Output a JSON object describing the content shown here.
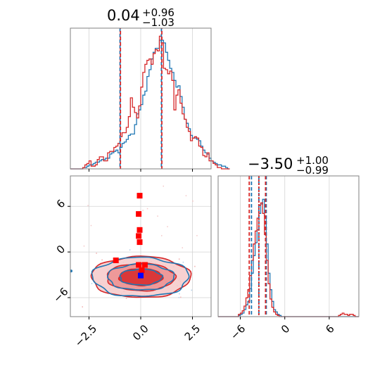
{
  "chart_data": {
    "type": "corner",
    "colors": {
      "series_a": "#1f77b4",
      "series_b": "#d62728",
      "fill_b": "#e34a4a",
      "marker_square": "#ff0000",
      "marker_center": "#0000ff",
      "grid": "#d3d3d3",
      "frame": "#808080"
    },
    "grid": true,
    "params": [
      {
        "median": "0.04",
        "upper": "+0.96",
        "lower": "−1.03",
        "range": [
          -3.4,
          3.4
        ],
        "ticks": [
          {
            "v": -2.5,
            "label": "−2.5"
          },
          {
            "v": 0.0,
            "label": "0.0"
          },
          {
            "v": 2.5,
            "label": "2.5"
          }
        ],
        "quantiles": {
          "series_a": [
            -1.0,
            0.04,
            1.0
          ],
          "series_b": [
            -1.0,
            0.04,
            1.0
          ]
        }
      },
      {
        "median": "−3.50",
        "upper": "+1.00",
        "lower": "−0.99",
        "range": [
          -9,
          10
        ],
        "ticks": [
          {
            "v": -6,
            "label": "−6"
          },
          {
            "v": 0,
            "label": "0"
          },
          {
            "v": 6,
            "label": "6"
          }
        ],
        "quantiles": {
          "series_a": [
            -4.5,
            -3.5,
            -2.5
          ],
          "series_b": [
            -4.8,
            -3.5,
            -2.6
          ]
        }
      }
    ],
    "joint": {
      "x_range": [
        -3.4,
        3.4
      ],
      "y_range": [
        -8.5,
        10
      ],
      "y_ticks": [
        {
          "v": 6,
          "label": "6"
        },
        {
          "v": 0,
          "label": "0"
        },
        {
          "v": -6,
          "label": "−6"
        }
      ],
      "contour_center": [
        0.0,
        -3.3
      ],
      "contour_levels_sigma": [
        [
          1.05,
          1.1
        ],
        [
          1.65,
          1.8
        ],
        [
          2.4,
          2.7
        ]
      ],
      "red_squares": [
        [
          -0.05,
          7.4
        ],
        [
          -0.1,
          5.0
        ],
        [
          -0.05,
          2.9
        ],
        [
          -0.1,
          2.1
        ],
        [
          -0.05,
          1.3
        ],
        [
          -1.2,
          -1.1
        ],
        [
          0.2,
          -1.7
        ],
        [
          -0.1,
          -1.7
        ],
        [
          0.05,
          -2.4
        ]
      ],
      "blue_square": [
        0.0,
        -3.1
      ]
    },
    "hist_1": {
      "x_start": -3.4,
      "bin_width": 0.1,
      "series_a": [
        0,
        0,
        0,
        0,
        0,
        0,
        1,
        1,
        2,
        3,
        3,
        4,
        5,
        5,
        6,
        7,
        7,
        8,
        8,
        11,
        12,
        13,
        14,
        12,
        16,
        19,
        20,
        22,
        25,
        26,
        26,
        33,
        41,
        44,
        48,
        55,
        58,
        69,
        74,
        82,
        87,
        90,
        90,
        96,
        96,
        94,
        87,
        81,
        75,
        72,
        66,
        61,
        62,
        54,
        46,
        37,
        34,
        30,
        25,
        23,
        23,
        22,
        21,
        17,
        14,
        12,
        11,
        8,
        6,
        5,
        4,
        3,
        3,
        2,
        2,
        1,
        0
      ],
      "series_b": [
        0,
        0,
        0,
        0,
        0,
        0,
        1,
        3,
        4,
        6,
        2,
        2,
        3,
        7,
        9,
        9,
        6,
        6,
        12,
        13,
        13,
        16,
        17,
        19,
        24,
        27,
        27,
        31,
        39,
        53,
        46,
        42,
        38,
        47,
        61,
        72,
        78,
        81,
        82,
        78,
        86,
        89,
        88,
        99,
        94,
        75,
        74,
        71,
        73,
        66,
        44,
        55,
        59,
        49,
        41,
        37,
        31,
        28,
        21,
        23,
        24,
        23,
        17,
        16,
        10,
        9,
        12,
        6,
        6,
        4,
        3,
        1,
        1,
        0,
        0,
        0,
        0
      ]
    },
    "hist_2": {
      "x_start": -9.0,
      "bin_width": 0.25,
      "series_a": [
        0,
        0,
        0,
        0,
        0,
        0,
        0,
        0,
        0,
        0,
        0,
        1,
        2,
        3,
        6,
        10,
        13,
        24,
        37,
        52,
        63,
        74,
        88,
        96,
        100,
        86,
        62,
        37,
        23,
        13,
        6,
        4,
        2,
        1,
        0,
        0,
        0,
        0,
        0,
        0,
        0,
        0,
        0,
        0,
        0,
        0,
        0,
        0,
        0,
        0,
        0,
        0,
        0,
        0,
        0,
        0,
        0,
        0,
        0,
        0,
        0,
        0,
        0,
        0,
        0,
        0,
        0,
        0,
        0,
        0,
        0,
        0,
        0,
        0,
        0,
        0
      ],
      "series_b": [
        0,
        0,
        0,
        0,
        0,
        0,
        0,
        0,
        0,
        0,
        0,
        2,
        3,
        5,
        9,
        16,
        23,
        35,
        48,
        62,
        73,
        84,
        95,
        97,
        88,
        70,
        48,
        28,
        15,
        8,
        4,
        2,
        1,
        0,
        0,
        0,
        0,
        0,
        0,
        0,
        0,
        0,
        0,
        0,
        0,
        0,
        0,
        0,
        0,
        0,
        0,
        0,
        0,
        0,
        0,
        0,
        0,
        0,
        0,
        0,
        0,
        0,
        0,
        0,
        0,
        1,
        2,
        3,
        2,
        2,
        1,
        2,
        2,
        1,
        0,
        0
      ]
    }
  }
}
